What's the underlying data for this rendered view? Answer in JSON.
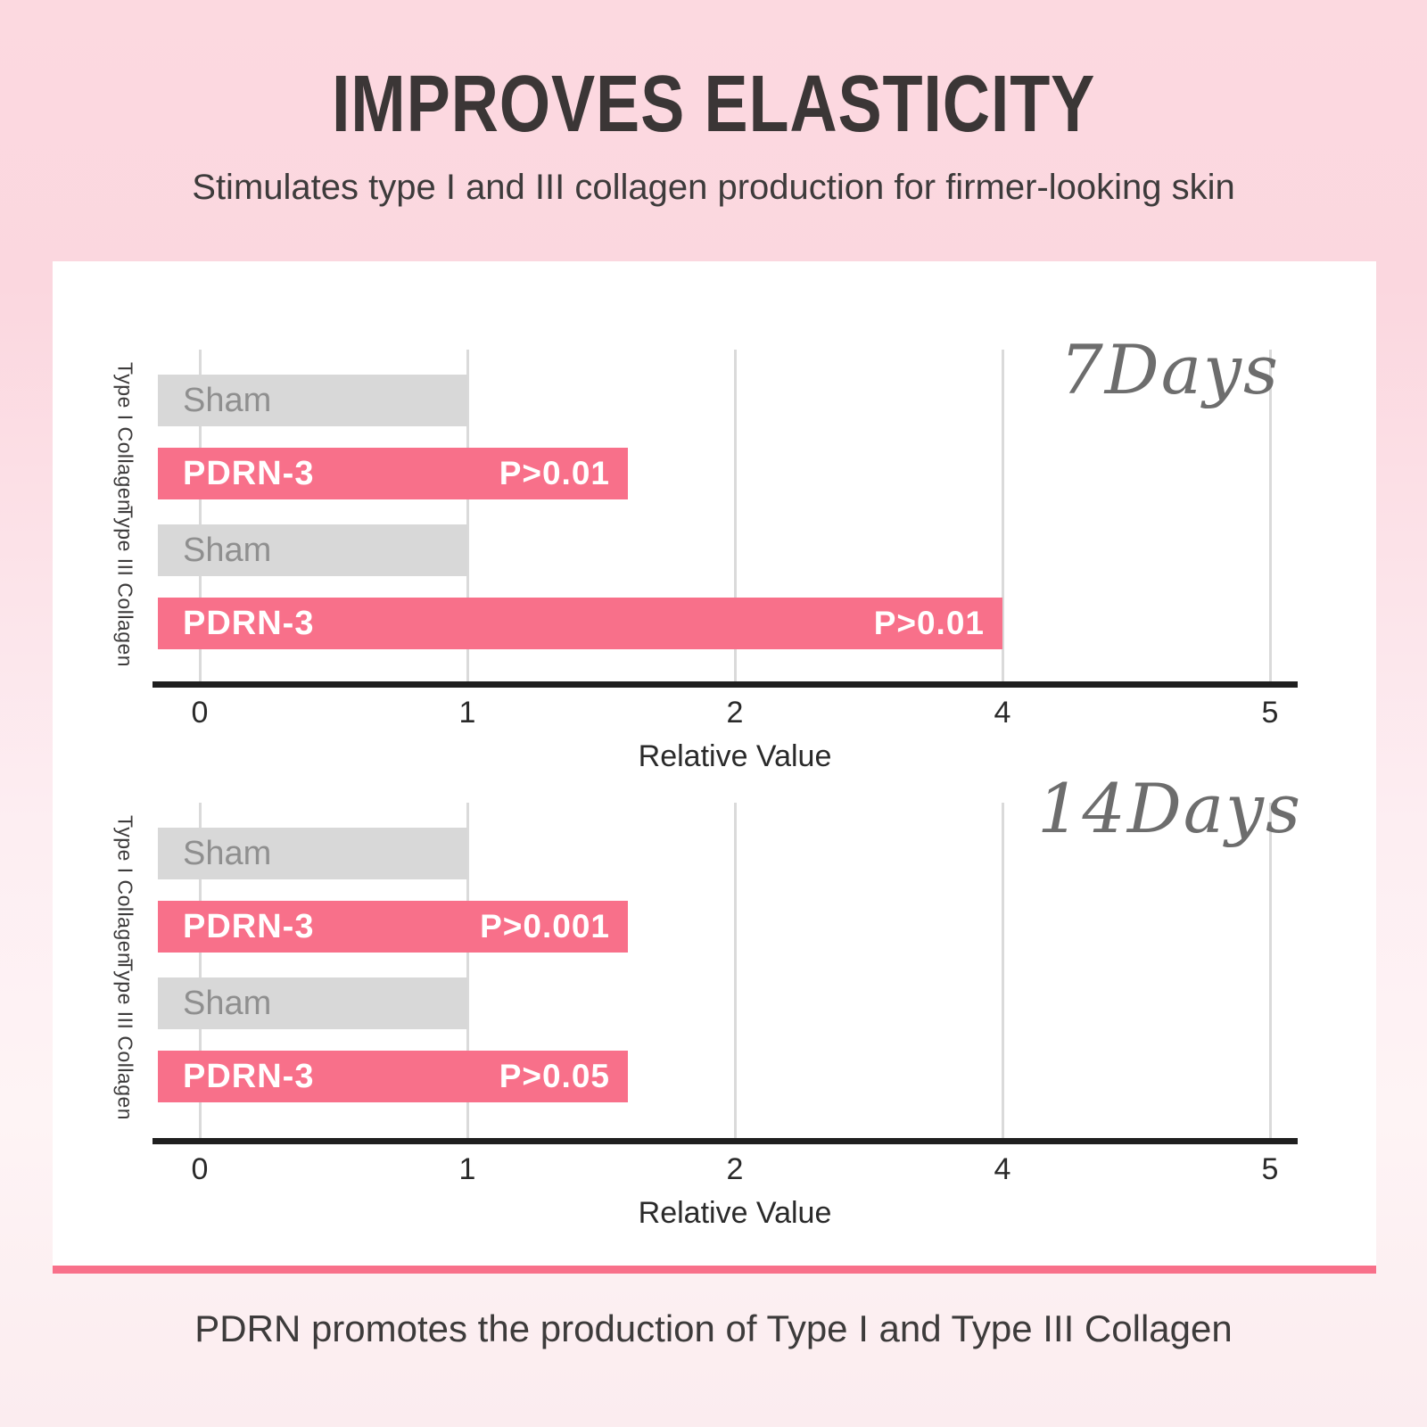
{
  "header": {
    "title": "IMPROVES ELASTICITY",
    "subtitle": "Stimulates type I and III collagen production for firmer-looking skin"
  },
  "footer": {
    "caption": "PDRN promotes the production of Type I and Type III Collagen"
  },
  "colors": {
    "background_top": "#fcd9e0",
    "background_bottom": "#fbecef",
    "card": "#ffffff",
    "divider": "#f8708a",
    "bar_pink": "#f8708a",
    "bar_gray": "#d8d8d8",
    "axis": "#1f1f1f",
    "gridline": "#dadada",
    "title_text": "#3b3636",
    "body_text": "#3d3b3b",
    "tick_text": "#2a2a2a",
    "sham_text": "#8f8f8f",
    "script_text": "#6d6d6d"
  },
  "chart_data": [
    {
      "type": "bar",
      "orientation": "horizontal",
      "period_label": "7Days",
      "xlabel": "Relative Value",
      "x_ticks": [
        "0",
        "1",
        "2",
        "4",
        "5"
      ],
      "xlim": [
        0,
        5
      ],
      "grid": true,
      "legend": "none",
      "groups": [
        {
          "label": "Type I Collagen",
          "bars": [
            {
              "name": "Sham",
              "value": 1,
              "style": "gray",
              "annotation": ""
            },
            {
              "name": "PDRN-3",
              "value": 1.6,
              "style": "pink",
              "annotation": "P>0.01"
            }
          ]
        },
        {
          "label": "Type III Collagen",
          "bars": [
            {
              "name": "Sham",
              "value": 1,
              "style": "gray",
              "annotation": ""
            },
            {
              "name": "PDRN-3",
              "value": 4,
              "style": "pink",
              "annotation": "P>0.01"
            }
          ]
        }
      ]
    },
    {
      "type": "bar",
      "orientation": "horizontal",
      "period_label": "14Days",
      "xlabel": "Relative Value",
      "x_ticks": [
        "0",
        "1",
        "2",
        "4",
        "5"
      ],
      "xlim": [
        0,
        5
      ],
      "grid": true,
      "legend": "none",
      "groups": [
        {
          "label": "Type I Collagen",
          "bars": [
            {
              "name": "Sham",
              "value": 1,
              "style": "gray",
              "annotation": ""
            },
            {
              "name": "PDRN-3",
              "value": 1.6,
              "style": "pink",
              "annotation": "P>0.001"
            }
          ]
        },
        {
          "label": "Type III Collagen",
          "bars": [
            {
              "name": "Sham",
              "value": 1,
              "style": "gray",
              "annotation": ""
            },
            {
              "name": "PDRN-3",
              "value": 1.6,
              "style": "pink",
              "annotation": "P>0.05"
            }
          ]
        }
      ]
    }
  ]
}
